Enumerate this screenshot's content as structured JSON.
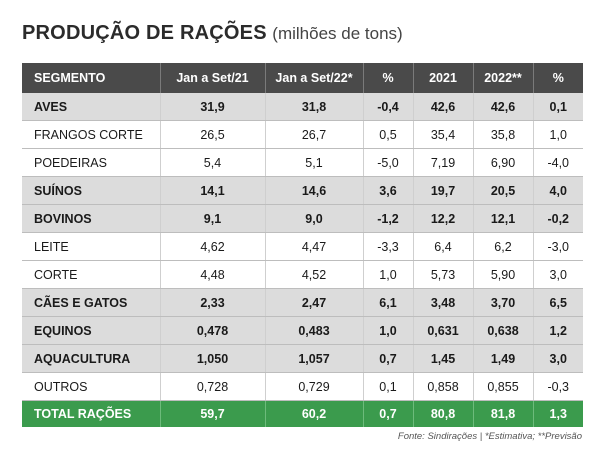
{
  "title": {
    "main": "PRODUÇÃO DE RAÇÕES",
    "sub": "(milhões de tons)"
  },
  "chart_data": {
    "type": "table",
    "columns": [
      "SEGMENTO",
      "Jan a Set/21",
      "Jan a Set/22*",
      "%",
      "2021",
      "2022**",
      "%"
    ],
    "rows": [
      {
        "style": "bold",
        "cells": [
          "AVES",
          "31,9",
          "31,8",
          "-0,4",
          "42,6",
          "42,6",
          "0,1"
        ]
      },
      {
        "style": "plain",
        "cells": [
          "FRANGOS CORTE",
          "26,5",
          "26,7",
          "0,5",
          "35,4",
          "35,8",
          "1,0"
        ]
      },
      {
        "style": "plain",
        "cells": [
          "POEDEIRAS",
          "5,4",
          "5,1",
          "-5,0",
          "7,19",
          "6,90",
          "-4,0"
        ]
      },
      {
        "style": "bold",
        "cells": [
          "SUÍNOS",
          "14,1",
          "14,6",
          "3,6",
          "19,7",
          "20,5",
          "4,0"
        ]
      },
      {
        "style": "bold",
        "cells": [
          "BOVINOS",
          "9,1",
          "9,0",
          "-1,2",
          "12,2",
          "12,1",
          "-0,2"
        ]
      },
      {
        "style": "plain",
        "cells": [
          "LEITE",
          "4,62",
          "4,47",
          "-3,3",
          "6,4",
          "6,2",
          "-3,0"
        ]
      },
      {
        "style": "plain",
        "cells": [
          "CORTE",
          "4,48",
          "4,52",
          "1,0",
          "5,73",
          "5,90",
          "3,0"
        ]
      },
      {
        "style": "bold",
        "cells": [
          "CÃES E GATOS",
          "2,33",
          "2,47",
          "6,1",
          "3,48",
          "3,70",
          "6,5"
        ]
      },
      {
        "style": "bold",
        "cells": [
          "EQUINOS",
          "0,478",
          "0,483",
          "1,0",
          "0,631",
          "0,638",
          "1,2"
        ]
      },
      {
        "style": "bold",
        "cells": [
          "AQUACULTURA",
          "1,050",
          "1,057",
          "0,7",
          "1,45",
          "1,49",
          "3,0"
        ]
      },
      {
        "style": "plain",
        "cells": [
          "OUTROS",
          "0,728",
          "0,729",
          "0,1",
          "0,858",
          "0,855",
          "-0,3"
        ]
      },
      {
        "style": "total",
        "cells": [
          "TOTAL RAÇÕES",
          "59,7",
          "60,2",
          "0,7",
          "80,8",
          "81,8",
          "1,3"
        ]
      }
    ]
  },
  "footnote": "Fonte: Sindirações | *Estimativa; **Previsão",
  "colors": {
    "header": "#4a4a4a",
    "bold_row": "#dcdcdc",
    "total_row": "#3b9b4d"
  }
}
